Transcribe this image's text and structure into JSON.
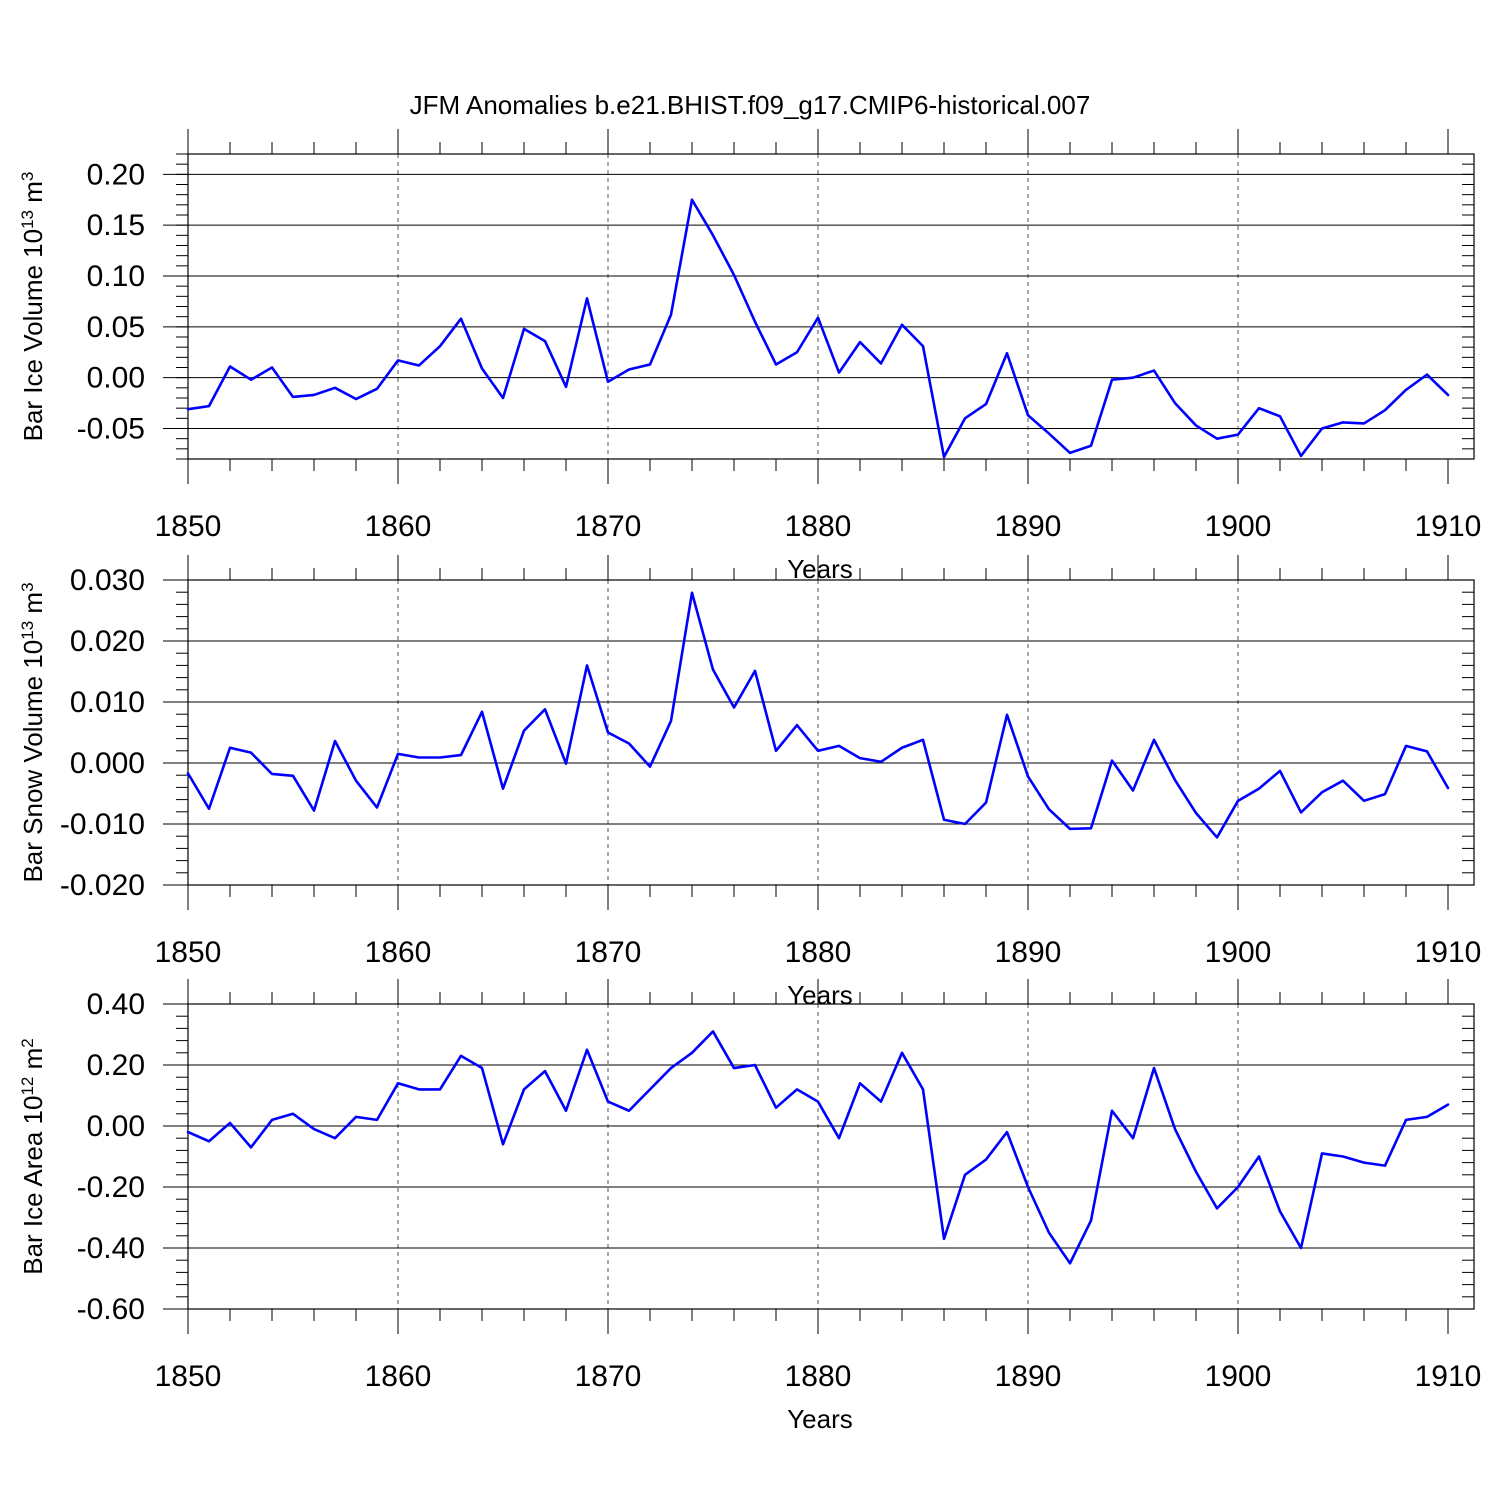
{
  "figure_title": "JFM Anomalies b.e21.BHIST.f09_g17.CMIP6-historical.007",
  "colors": {
    "series": "#0000ff",
    "axis": "#000000",
    "grid": "#555555"
  },
  "chart_data": [
    {
      "type": "line",
      "ylabel": "Bar Ice Volume",
      "ylabel_exponent_base": "10",
      "ylabel_exponent": "13",
      "ylabel_unit": "m",
      "ylabel_unit_power": "3",
      "xlabel": "Years",
      "xlim": [
        1850,
        1910
      ],
      "ylim": [
        -0.08,
        0.22
      ],
      "yticks": [
        0.2,
        0.15,
        0.1,
        0.05,
        0.0,
        -0.05
      ],
      "ytick_labels": [
        "0.20",
        "0.15",
        "0.10",
        "0.05",
        "0.00",
        "-0.05"
      ],
      "xticks": [
        1850,
        1860,
        1870,
        1880,
        1890,
        1900,
        1910
      ],
      "xtick_labels": [
        "1850",
        "1860",
        "1870",
        "1880",
        "1890",
        "1900",
        "1910"
      ],
      "x": [
        1850,
        1851,
        1852,
        1853,
        1854,
        1855,
        1856,
        1857,
        1858,
        1859,
        1860,
        1861,
        1862,
        1863,
        1864,
        1865,
        1866,
        1867,
        1868,
        1869,
        1870,
        1871,
        1872,
        1873,
        1874,
        1875,
        1876,
        1877,
        1878,
        1879,
        1880,
        1881,
        1882,
        1883,
        1884,
        1885,
        1886,
        1887,
        1888,
        1889,
        1890,
        1891,
        1892,
        1893,
        1894,
        1895,
        1896,
        1897,
        1898,
        1899,
        1900,
        1901,
        1902,
        1903,
        1904,
        1905,
        1906,
        1907,
        1908,
        1909,
        1910
      ],
      "values": [
        -0.031,
        -0.028,
        0.011,
        -0.002,
        0.01,
        -0.019,
        -0.017,
        -0.01,
        -0.021,
        -0.011,
        0.017,
        0.012,
        0.031,
        0.058,
        0.009,
        -0.02,
        0.048,
        0.036,
        -0.009,
        0.078,
        -0.004,
        0.008,
        0.013,
        0.062,
        0.175,
        0.14,
        0.101,
        0.055,
        0.013,
        0.025,
        0.059,
        0.005,
        0.035,
        0.014,
        0.052,
        0.031,
        -0.078,
        -0.04,
        -0.026,
        0.024,
        -0.037,
        -0.055,
        -0.074,
        -0.067,
        -0.002,
        0.0,
        0.007,
        -0.025,
        -0.047,
        -0.06,
        -0.056,
        -0.03,
        -0.038,
        -0.077,
        -0.05,
        -0.044,
        -0.045,
        -0.032,
        -0.012,
        0.003,
        -0.017
      ]
    },
    {
      "type": "line",
      "ylabel": "Bar Snow Volume",
      "ylabel_exponent_base": "10",
      "ylabel_exponent": "13",
      "ylabel_unit": "m",
      "ylabel_unit_power": "3",
      "xlabel": "Years",
      "xlim": [
        1850,
        1910
      ],
      "ylim": [
        -0.02,
        0.03
      ],
      "yticks": [
        0.03,
        0.02,
        0.01,
        0.0,
        -0.01,
        -0.02
      ],
      "ytick_labels": [
        "0.030",
        "0.020",
        "0.010",
        "0.000",
        "-0.010",
        "-0.020"
      ],
      "xticks": [
        1850,
        1860,
        1870,
        1880,
        1890,
        1900,
        1910
      ],
      "xtick_labels": [
        "1850",
        "1860",
        "1870",
        "1880",
        "1890",
        "1900",
        "1910"
      ],
      "x": [
        1850,
        1851,
        1852,
        1853,
        1854,
        1855,
        1856,
        1857,
        1858,
        1859,
        1860,
        1861,
        1862,
        1863,
        1864,
        1865,
        1866,
        1867,
        1868,
        1869,
        1870,
        1871,
        1872,
        1873,
        1874,
        1875,
        1876,
        1877,
        1878,
        1879,
        1880,
        1881,
        1882,
        1883,
        1884,
        1885,
        1886,
        1887,
        1888,
        1889,
        1890,
        1891,
        1892,
        1893,
        1894,
        1895,
        1896,
        1897,
        1898,
        1899,
        1900,
        1901,
        1902,
        1903,
        1904,
        1905,
        1906,
        1907,
        1908,
        1909,
        1910
      ],
      "values": [
        -0.0017,
        -0.0075,
        0.0025,
        0.0017,
        -0.0018,
        -0.0021,
        -0.0078,
        0.0036,
        -0.0029,
        -0.0073,
        0.0015,
        0.0009,
        0.0009,
        0.0013,
        0.0084,
        -0.0042,
        0.0053,
        0.0088,
        -0.0001,
        0.016,
        0.005,
        0.0032,
        -0.0006,
        0.0069,
        0.0279,
        0.0153,
        0.0091,
        0.0151,
        0.002,
        0.0062,
        0.002,
        0.0028,
        0.0008,
        0.0002,
        0.0025,
        0.0038,
        -0.0093,
        -0.01,
        -0.0065,
        0.0079,
        -0.0022,
        -0.0076,
        -0.0108,
        -0.0107,
        0.0004,
        -0.0045,
        0.0038,
        -0.0028,
        -0.0082,
        -0.0122,
        -0.0062,
        -0.0042,
        -0.0013,
        -0.0081,
        -0.0048,
        -0.0029,
        -0.0062,
        -0.0051,
        0.0028,
        0.0019,
        -0.0041
      ]
    },
    {
      "type": "line",
      "ylabel": "Bar Ice Area",
      "ylabel_exponent_base": "10",
      "ylabel_exponent": "12",
      "ylabel_unit": "m",
      "ylabel_unit_power": "2",
      "xlabel": "Years",
      "xlim": [
        1850,
        1910
      ],
      "ylim": [
        -0.6,
        0.4
      ],
      "yticks": [
        0.4,
        0.2,
        0.0,
        -0.2,
        -0.4,
        -0.6
      ],
      "ytick_labels": [
        "0.40",
        "0.20",
        "0.00",
        "-0.20",
        "-0.40",
        "-0.60"
      ],
      "xticks": [
        1850,
        1860,
        1870,
        1880,
        1890,
        1900,
        1910
      ],
      "xtick_labels": [
        "1850",
        "1860",
        "1870",
        "1880",
        "1890",
        "1900",
        "1910"
      ],
      "x": [
        1850,
        1851,
        1852,
        1853,
        1854,
        1855,
        1856,
        1857,
        1858,
        1859,
        1860,
        1861,
        1862,
        1863,
        1864,
        1865,
        1866,
        1867,
        1868,
        1869,
        1870,
        1871,
        1872,
        1873,
        1874,
        1875,
        1876,
        1877,
        1878,
        1879,
        1880,
        1881,
        1882,
        1883,
        1884,
        1885,
        1886,
        1887,
        1888,
        1889,
        1890,
        1891,
        1892,
        1893,
        1894,
        1895,
        1896,
        1897,
        1898,
        1899,
        1900,
        1901,
        1902,
        1903,
        1904,
        1905,
        1906,
        1907,
        1908,
        1909,
        1910
      ],
      "values": [
        -0.02,
        -0.05,
        0.01,
        -0.07,
        0.02,
        0.04,
        -0.01,
        -0.04,
        0.03,
        0.02,
        0.14,
        0.12,
        0.12,
        0.23,
        0.19,
        -0.06,
        0.12,
        0.18,
        0.05,
        0.25,
        0.08,
        0.05,
        0.12,
        0.19,
        0.24,
        0.31,
        0.19,
        0.2,
        0.06,
        0.12,
        0.08,
        -0.04,
        0.14,
        0.08,
        0.24,
        0.12,
        -0.37,
        -0.16,
        -0.11,
        -0.02,
        -0.2,
        -0.35,
        -0.45,
        -0.31,
        0.05,
        -0.04,
        0.19,
        -0.01,
        -0.15,
        -0.27,
        -0.2,
        -0.1,
        -0.28,
        -0.4,
        -0.09,
        -0.1,
        -0.12,
        -0.13,
        0.02,
        0.03,
        0.07
      ]
    }
  ]
}
